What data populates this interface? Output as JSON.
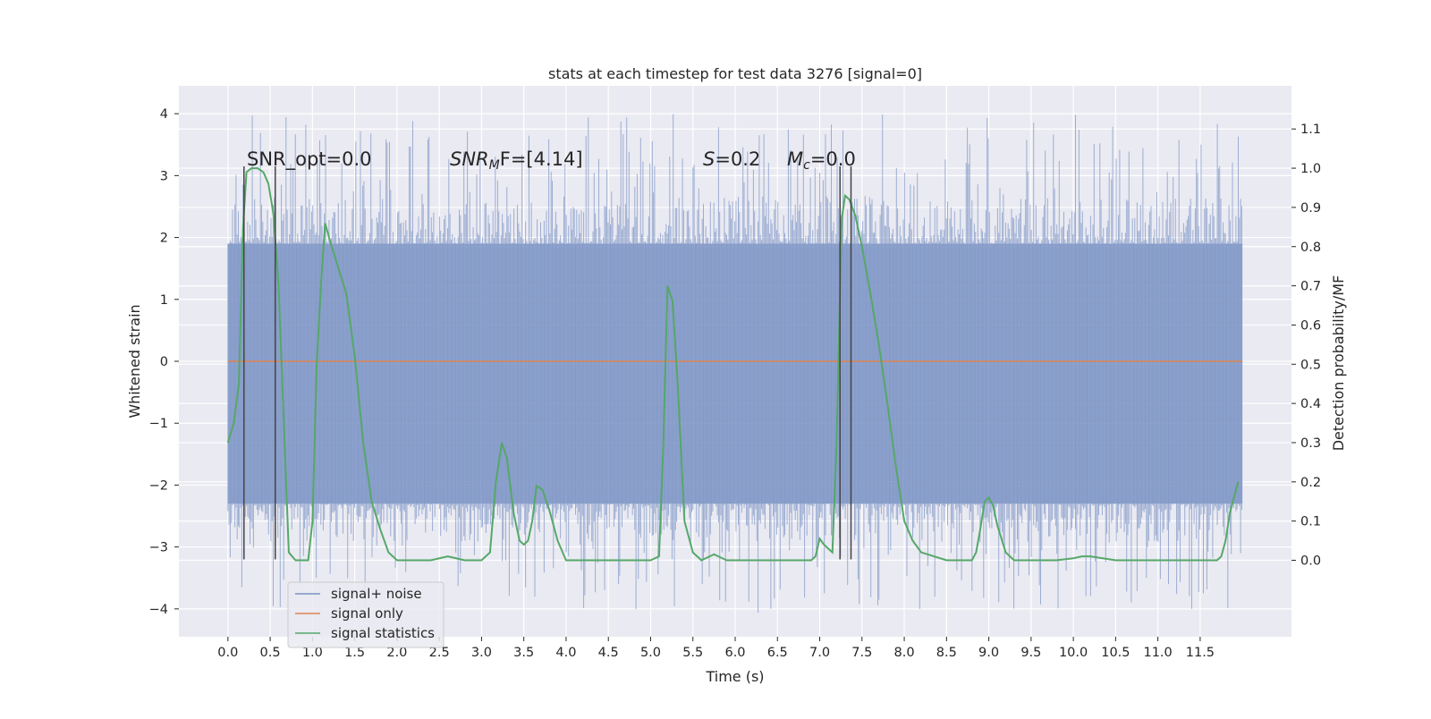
{
  "chart_data": {
    "type": "line",
    "title": "stats at each timestep for test data 3276 [signal=0]",
    "xlabel": "Time (s)",
    "ylabel_left": "Whitened strain",
    "ylabel_right": "Detection probability/MF",
    "xlim": [
      -0.58,
      12.58
    ],
    "ylim_left": [
      -4.45,
      4.45
    ],
    "ylim_right": [
      -0.195,
      1.21
    ],
    "x_ticks": [
      0.0,
      0.5,
      1.0,
      1.5,
      2.0,
      2.5,
      3.0,
      3.5,
      4.0,
      4.5,
      5.0,
      5.5,
      6.0,
      6.5,
      7.0,
      7.5,
      8.0,
      8.5,
      9.0,
      9.5,
      10.0,
      10.5,
      11.0,
      11.5
    ],
    "x_tick_labels": [
      "0.0",
      "0.5",
      "1.0",
      "1.5",
      "2.0",
      "2.5",
      "3.0",
      "3.5",
      "4.0",
      "4.5",
      "5.0",
      "5.5",
      "6.0",
      "6.5",
      "7.0",
      "7.5",
      "8.0",
      "8.5",
      "9.0",
      "9.5",
      "10.0",
      "10.5",
      "11.0",
      "11.5"
    ],
    "y_left_ticks": [
      -4,
      -3,
      -2,
      -1,
      0,
      1,
      2,
      3,
      4
    ],
    "y_left_tick_labels": [
      "−4",
      "−3",
      "−2",
      "−1",
      "0",
      "1",
      "2",
      "3",
      "4"
    ],
    "y_right_ticks": [
      0.0,
      0.1,
      0.2,
      0.3,
      0.4,
      0.5,
      0.6,
      0.7,
      0.8,
      0.9,
      1.0,
      1.1
    ],
    "y_right_tick_labels": [
      "0.0",
      "0.1",
      "0.2",
      "0.3",
      "0.4",
      "0.5",
      "0.6",
      "0.7",
      "0.8",
      "0.9",
      "1.0",
      "1.1"
    ],
    "grid": true,
    "colors": {
      "background": "#eaeaf2",
      "grid": "#ffffff",
      "noise": "#7b93c4",
      "signal": "#dd8452",
      "statistics": "#55a868",
      "marker": "#444444"
    },
    "noise_summary": {
      "x_range": [
        0.0,
        12.0
      ],
      "typical_band": [
        -2.3,
        1.9
      ],
      "min": -4.1,
      "max": 4.0
    },
    "signal_value": 0.0,
    "series": [
      {
        "name": "signal statistics",
        "axis": "right",
        "x": [
          0.0,
          0.07,
          0.13,
          0.18,
          0.22,
          0.28,
          0.35,
          0.42,
          0.48,
          0.54,
          0.6,
          0.67,
          0.72,
          0.8,
          0.86,
          0.95,
          1.0,
          1.05,
          1.1,
          1.15,
          1.2,
          1.3,
          1.4,
          1.5,
          1.6,
          1.7,
          1.8,
          1.9,
          2.0,
          2.2,
          2.4,
          2.6,
          2.8,
          3.0,
          3.1,
          3.17,
          3.24,
          3.3,
          3.38,
          3.45,
          3.5,
          3.55,
          3.6,
          3.65,
          3.72,
          3.8,
          3.9,
          4.0,
          4.2,
          4.5,
          4.8,
          5.0,
          5.1,
          5.15,
          5.2,
          5.26,
          5.32,
          5.4,
          5.5,
          5.6,
          5.7,
          5.75,
          5.8,
          5.9,
          6.0,
          6.2,
          6.5,
          6.8,
          6.9,
          6.95,
          7.0,
          7.05,
          7.1,
          7.15,
          7.2,
          7.26,
          7.3,
          7.35,
          7.42,
          7.5,
          7.6,
          7.7,
          7.8,
          7.9,
          8.0,
          8.1,
          8.2,
          8.5,
          8.7,
          8.8,
          8.85,
          8.9,
          8.95,
          9.0,
          9.05,
          9.1,
          9.2,
          9.3,
          9.5,
          9.8,
          10.0,
          10.1,
          10.2,
          10.5,
          11.0,
          11.5,
          11.7,
          11.75,
          11.8,
          11.85,
          11.9,
          11.95
        ],
        "values": [
          0.3,
          0.35,
          0.45,
          0.85,
          0.99,
          1.0,
          1.0,
          0.99,
          0.96,
          0.88,
          0.7,
          0.3,
          0.02,
          0.0,
          0.0,
          0.0,
          0.1,
          0.5,
          0.7,
          0.86,
          0.82,
          0.75,
          0.68,
          0.52,
          0.3,
          0.15,
          0.08,
          0.02,
          0.0,
          0.0,
          0.0,
          0.01,
          0.0,
          0.0,
          0.02,
          0.2,
          0.3,
          0.26,
          0.12,
          0.05,
          0.04,
          0.05,
          0.1,
          0.19,
          0.18,
          0.13,
          0.05,
          0.0,
          0.0,
          0.0,
          0.0,
          0.0,
          0.01,
          0.3,
          0.7,
          0.66,
          0.45,
          0.1,
          0.02,
          0.0,
          0.01,
          0.015,
          0.01,
          0.0,
          0.0,
          0.0,
          0.0,
          0.0,
          0.0,
          0.01,
          0.055,
          0.04,
          0.03,
          0.02,
          0.3,
          0.87,
          0.93,
          0.92,
          0.88,
          0.8,
          0.68,
          0.55,
          0.4,
          0.24,
          0.1,
          0.05,
          0.02,
          0.0,
          0.0,
          0.0,
          0.02,
          0.08,
          0.15,
          0.16,
          0.14,
          0.09,
          0.02,
          0.0,
          0.0,
          0.0,
          0.005,
          0.01,
          0.01,
          0.0,
          0.0,
          0.0,
          0.0,
          0.01,
          0.05,
          0.12,
          0.16,
          0.2
        ]
      }
    ],
    "markers": [
      {
        "x": 0.19,
        "top": 3.15,
        "bottom": -3.2
      },
      {
        "x": 0.56,
        "top": 3.15,
        "bottom": -3.2
      },
      {
        "x": 7.24,
        "top": 3.15,
        "bottom": -3.2
      },
      {
        "x": 7.37,
        "top": 3.15,
        "bottom": -3.2
      }
    ],
    "annotations": [
      {
        "id": "snr-opt",
        "text": "SNR_opt=0.0",
        "x": 0.2,
        "y": 3.25
      },
      {
        "id": "snr-mf",
        "text": "SNRMF=[4.14]",
        "x": 2.6,
        "y": 3.25
      },
      {
        "id": "s",
        "text": "S=0.2",
        "x": 5.6,
        "y": 3.25
      },
      {
        "id": "mc",
        "text": "Mc=0.0",
        "x": 6.6,
        "y": 3.25
      }
    ],
    "legend": {
      "placement": "lower-left",
      "entries": [
        {
          "label": "signal+ noise",
          "color": "#7b93c4"
        },
        {
          "label": "signal only",
          "color": "#dd8452"
        },
        {
          "label": "signal statistics",
          "color": "#55a868"
        }
      ]
    }
  },
  "annotations_text": {
    "snr_opt": "SNR_opt=0.0",
    "snr_mf_main": "SNR",
    "snr_mf_sub": "M",
    "snr_mf_rest": "F=[4.14]",
    "s_italic": "S",
    "s_rest": "=0.2",
    "mc_main": "M",
    "mc_sub": "c",
    "mc_rest": "=0.0"
  }
}
